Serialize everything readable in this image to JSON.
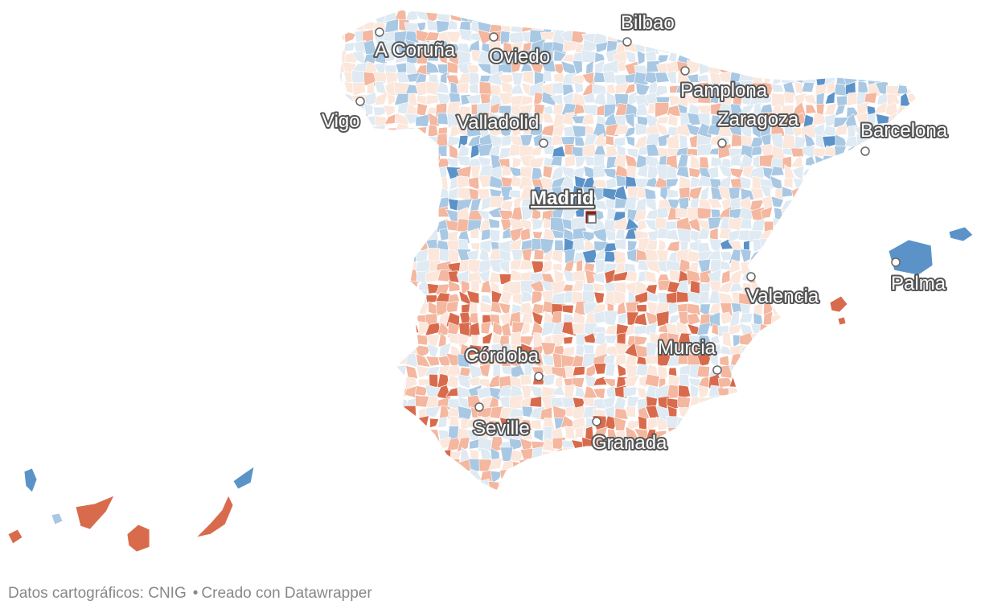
{
  "map": {
    "colors": {
      "dark_red": "#8e1b1b",
      "red": "#d96b4d",
      "light_red": "#f4b7a0",
      "pale": "#fbe7dc",
      "pale_blue": "#dfeaf3",
      "light_blue": "#a9c8e3",
      "blue": "#5b93c9",
      "dark_blue": "#2c64a4",
      "border": "#ffffff",
      "city_marker_fill": "#ffffff",
      "city_marker_stroke": "#666666"
    },
    "cities": [
      {
        "name": "Bilbao",
        "capital": false
      },
      {
        "name": "A Coruña",
        "capital": false
      },
      {
        "name": "Oviedo",
        "capital": false
      },
      {
        "name": "Pamplona",
        "capital": false
      },
      {
        "name": "Vigo",
        "capital": false
      },
      {
        "name": "Valladolid",
        "capital": false
      },
      {
        "name": "Zaragoza",
        "capital": false
      },
      {
        "name": "Barcelona",
        "capital": false
      },
      {
        "name": "Madrid",
        "capital": true
      },
      {
        "name": "Palma",
        "capital": false
      },
      {
        "name": "Valencia",
        "capital": false
      },
      {
        "name": "Murcia",
        "capital": false
      },
      {
        "name": "Córdoba",
        "capital": false
      },
      {
        "name": "Seville",
        "capital": false
      },
      {
        "name": "Granada",
        "capital": false
      }
    ]
  },
  "footer": {
    "source": "Datos cartográficos: CNIG",
    "separator": "•",
    "credit": "Creado con Datawrapper"
  }
}
